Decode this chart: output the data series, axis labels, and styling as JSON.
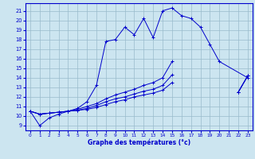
{
  "xlabel": "Graphe des températures (°c)",
  "bg_color": "#cce5f0",
  "line_color": "#0000cc",
  "grid_color": "#99bbcc",
  "ylim": [
    8.5,
    21.8
  ],
  "xlim": [
    -0.5,
    23.5
  ],
  "yticks": [
    9,
    10,
    11,
    12,
    13,
    14,
    15,
    16,
    17,
    18,
    19,
    20,
    21
  ],
  "xticks": [
    0,
    1,
    2,
    3,
    4,
    5,
    6,
    7,
    8,
    9,
    10,
    11,
    12,
    13,
    14,
    15,
    16,
    17,
    18,
    19,
    20,
    21,
    22,
    23
  ],
  "series": [
    {
      "x": [
        0,
        1,
        2,
        3,
        4,
        5,
        6,
        7,
        8,
        9,
        10,
        11,
        12,
        13,
        14,
        15,
        16,
        17,
        18,
        19,
        20,
        23
      ],
      "y": [
        10.5,
        9.0,
        9.8,
        10.2,
        10.5,
        10.8,
        11.5,
        13.2,
        17.8,
        18.0,
        19.3,
        18.5,
        20.2,
        18.2,
        21.0,
        21.3,
        20.5,
        20.2,
        19.3,
        17.5,
        15.7,
        14.0
      ]
    },
    {
      "x": [
        0,
        1,
        2,
        3,
        4,
        5,
        6,
        7,
        8,
        9,
        10,
        11,
        12,
        13,
        14,
        15,
        16,
        17,
        18,
        19,
        20,
        21,
        22,
        23
      ],
      "y": [
        10.5,
        10.2,
        10.3,
        10.4,
        10.5,
        10.7,
        11.0,
        11.3,
        11.8,
        12.2,
        12.5,
        12.8,
        13.2,
        13.5,
        14.0,
        15.7,
        null,
        null,
        null,
        null,
        null,
        null,
        12.5,
        14.2
      ]
    },
    {
      "x": [
        0,
        1,
        2,
        3,
        4,
        5,
        6,
        7,
        8,
        9,
        10,
        11,
        12,
        13,
        14,
        15,
        16,
        17,
        18,
        19,
        20,
        21,
        22,
        23
      ],
      "y": [
        10.5,
        10.2,
        10.3,
        10.4,
        10.5,
        10.6,
        10.8,
        11.1,
        11.5,
        11.8,
        12.0,
        12.3,
        12.6,
        12.8,
        13.2,
        14.3,
        null,
        null,
        null,
        null,
        null,
        null,
        12.5,
        14.2
      ]
    },
    {
      "x": [
        0,
        1,
        2,
        3,
        4,
        5,
        6,
        7,
        8,
        9,
        10,
        11,
        12,
        13,
        14,
        15,
        16,
        17,
        18,
        19,
        20,
        21,
        22,
        23
      ],
      "y": [
        10.5,
        10.2,
        10.3,
        10.4,
        10.5,
        10.6,
        10.7,
        10.9,
        11.2,
        11.5,
        11.7,
        12.0,
        12.2,
        12.4,
        12.7,
        13.5,
        null,
        null,
        null,
        null,
        null,
        null,
        12.5,
        14.2
      ]
    }
  ]
}
